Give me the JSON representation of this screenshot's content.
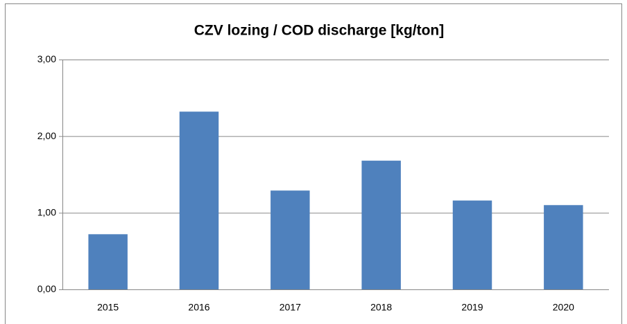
{
  "chart_data": {
    "type": "bar",
    "title": "CZV lozing / COD discharge [kg/ton]",
    "categories": [
      "2015",
      "2016",
      "2017",
      "2018",
      "2019",
      "2020"
    ],
    "values": [
      0.72,
      2.32,
      1.29,
      1.68,
      1.16,
      1.1
    ],
    "color": "#4f81bd",
    "ylim": [
      0,
      3
    ],
    "yticks": [
      {
        "value": 0,
        "label": "0,00"
      },
      {
        "value": 1,
        "label": "1,00"
      },
      {
        "value": 2,
        "label": "2,00"
      },
      {
        "value": 3,
        "label": "3,00"
      }
    ],
    "grid": true
  }
}
